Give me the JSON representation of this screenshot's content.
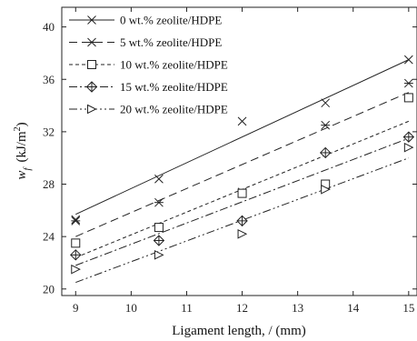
{
  "chart_data": {
    "type": "scatter",
    "title": "",
    "xlabel": "Ligament length, / (mm)",
    "ylabel": "w_f (kJ/m²)",
    "ylabel_parts": {
      "symbol": "w",
      "subscript": "f",
      "units": "(kJ/m",
      "units_sup": "2",
      "units_close": ")"
    },
    "xlim": [
      8.75,
      15.15
    ],
    "ylim": [
      19.5,
      41.5
    ],
    "x_ticks": [
      9,
      10,
      11,
      12,
      13,
      14,
      15
    ],
    "y_ticks": [
      20,
      24,
      28,
      32,
      36,
      40
    ],
    "grid": false,
    "legend_position": "top-left",
    "series": [
      {
        "name": "0 wt.% zeolite/HDPE",
        "marker": "x",
        "line_style": "solid",
        "x": [
          9,
          10.5,
          12,
          13.5,
          15
        ],
        "y": [
          25.3,
          28.4,
          32.8,
          34.2,
          37.5
        ],
        "fit": {
          "x": [
            9,
            15
          ],
          "y": [
            25.7,
            37.5
          ]
        }
      },
      {
        "name": "5 wt.% zeolite/HDPE",
        "marker": "asterisk",
        "line_style": "long-dash",
        "x": [
          9,
          10.5,
          12,
          13.5,
          15
        ],
        "y": [
          25.2,
          26.6,
          27.4,
          32.5,
          35.7
        ],
        "fit": {
          "x": [
            9,
            15
          ],
          "y": [
            24.0,
            35.0
          ]
        }
      },
      {
        "name": "10 wt.% zeolite/HDPE",
        "marker": "square",
        "line_style": "short-dash",
        "x": [
          9,
          10.5,
          12,
          13.5,
          15
        ],
        "y": [
          23.5,
          24.7,
          27.3,
          28.0,
          34.6
        ],
        "fit": {
          "x": [
            9,
            15
          ],
          "y": [
            22.4,
            32.8
          ]
        }
      },
      {
        "name": "15 wt.% zeolite/HDPE",
        "marker": "diamond-plus",
        "line_style": "dash-dot",
        "x": [
          9,
          10.5,
          12,
          13.5,
          15
        ],
        "y": [
          22.6,
          23.7,
          25.2,
          30.4,
          31.6
        ],
        "fit": {
          "x": [
            9,
            15
          ],
          "y": [
            21.8,
            31.5
          ]
        }
      },
      {
        "name": "20 wt.% zeolite/HDPE",
        "marker": "triangle-right",
        "line_style": "dash-dot-dot",
        "x": [
          9,
          10.5,
          12,
          13.5,
          15
        ],
        "y": [
          21.5,
          22.6,
          24.2,
          27.6,
          30.8
        ],
        "fit": {
          "x": [
            9,
            15
          ],
          "y": [
            20.5,
            30.0
          ]
        }
      }
    ]
  },
  "colors": {
    "ink": "#222222",
    "background": "#ffffff"
  }
}
